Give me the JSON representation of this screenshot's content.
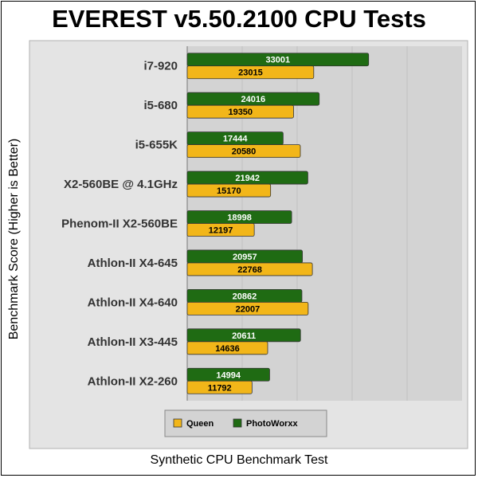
{
  "chart_data": {
    "type": "bar",
    "orientation": "horizontal",
    "title": "EVEREST v5.50.2100 CPU Tests",
    "xlabel": "Synthetic CPU Benchmark Test",
    "ylabel": "Benchmark Score (Higher is Better)",
    "categories": [
      "i7-920",
      "i5-680",
      "i5-655K",
      "X2-560BE @ 4.1GHz",
      "Phenom-II X2-560BE",
      "Athlon-II X4-645",
      "Athlon-II X4-640",
      "Athlon-II X3-445",
      "Athlon-II X2-260"
    ],
    "series": [
      {
        "name": "PhotoWorxx",
        "color": "#1f6b13",
        "label_color": "#ffffff",
        "values": [
          33001,
          24016,
          17444,
          21942,
          18998,
          20957,
          20862,
          20611,
          14994
        ]
      },
      {
        "name": "Queen",
        "color": "#f2b619",
        "label_color": "#000000",
        "values": [
          23015,
          19350,
          20580,
          15170,
          12197,
          22768,
          22007,
          14636,
          11792
        ]
      }
    ],
    "xlim": [
      0,
      50000
    ],
    "grid": true,
    "legend_position": "bottom",
    "legend_order": [
      "Queen",
      "PhotoWorxx"
    ]
  }
}
